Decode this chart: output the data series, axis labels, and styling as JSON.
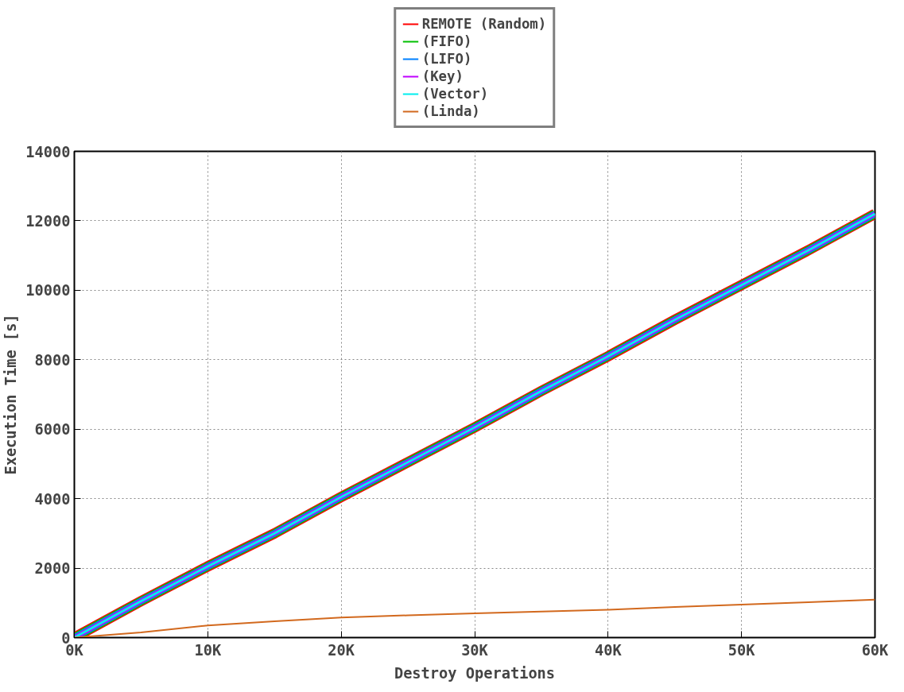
{
  "chart_data": {
    "type": "line",
    "xlabel": "Destroy Operations",
    "ylabel": "Execution Time [s]",
    "x": [
      0,
      5000,
      10000,
      15000,
      20000,
      25000,
      30000,
      35000,
      40000,
      45000,
      50000,
      55000,
      60000
    ],
    "series": [
      {
        "name": "REMOTE (Random)",
        "color": "#ff0000",
        "values": [
          0,
          1050,
          2050,
          3000,
          4050,
          5050,
          6050,
          7100,
          8100,
          9150,
          10150,
          11150,
          12200
        ]
      },
      {
        "name": "(FIFO)",
        "color": "#00c000",
        "values": [
          0,
          1050,
          2050,
          3000,
          4050,
          5050,
          6050,
          7100,
          8100,
          9150,
          10150,
          11150,
          12200
        ]
      },
      {
        "name": "(LIFO)",
        "color": "#0080ff",
        "values": [
          0,
          1050,
          2050,
          3000,
          4050,
          5050,
          6050,
          7100,
          8100,
          9150,
          10150,
          11150,
          12200
        ]
      },
      {
        "name": "(Key)",
        "color": "#c000ff",
        "values": [
          0,
          1050,
          2050,
          3000,
          4050,
          5050,
          6050,
          7100,
          8100,
          9150,
          10150,
          11150,
          12200
        ]
      },
      {
        "name": "(Vector)",
        "color": "#00eeee",
        "values": [
          0,
          1050,
          2050,
          3000,
          4050,
          5050,
          6050,
          7100,
          8100,
          9150,
          10150,
          11150,
          12200
        ]
      },
      {
        "name": "(Linda)",
        "color": "#d2691e",
        "values": [
          0,
          150,
          350,
          470,
          580,
          640,
          700,
          750,
          800,
          880,
          950,
          1020,
          1090
        ]
      }
    ],
    "xlim": [
      0,
      60000
    ],
    "ylim": [
      0,
      14000
    ],
    "xticks": [
      {
        "value": 0,
        "label": "0K"
      },
      {
        "value": 10000,
        "label": "10K"
      },
      {
        "value": 20000,
        "label": "20K"
      },
      {
        "value": 30000,
        "label": "30K"
      },
      {
        "value": 40000,
        "label": "40K"
      },
      {
        "value": 50000,
        "label": "50K"
      },
      {
        "value": 60000,
        "label": "60K"
      }
    ],
    "yticks": [
      0,
      2000,
      4000,
      6000,
      8000,
      10000,
      12000,
      14000
    ],
    "grid": true,
    "legend": "top",
    "marker": "none",
    "line_style": "solid"
  }
}
